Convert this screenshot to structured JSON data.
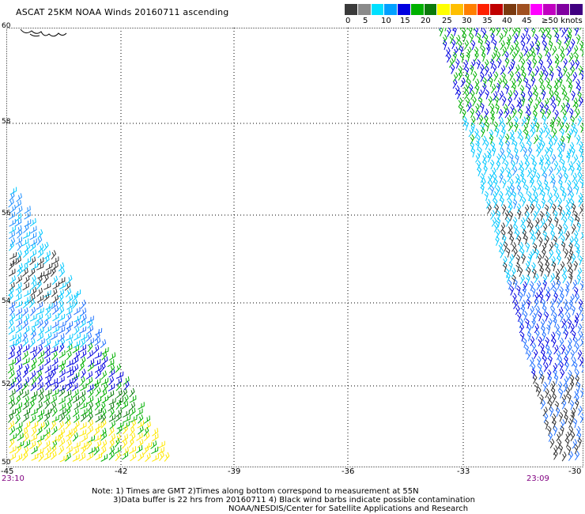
{
  "title": "ASCAT 25KM NOAA Winds 20160711 ascending",
  "legend": {
    "labels": [
      "0",
      "5",
      "10",
      "15",
      "20",
      "25",
      "30",
      "35",
      "40",
      "45",
      "≥50 knots"
    ],
    "colors": [
      "#3a3a3a",
      "#8a8a8a",
      "#00e0ff",
      "#00a0ff",
      "#0000e0",
      "#00b000",
      "#0a7a0a",
      "#ffff00",
      "#ffbf00",
      "#ff7f00",
      "#ff2000",
      "#c00000",
      "#7a3a10",
      "#a05020",
      "#ff00ff",
      "#c000c0",
      "#8000a0",
      "#400080"
    ]
  },
  "map": {
    "lat_labels": [
      "60",
      "58",
      "56",
      "54",
      "52",
      "50"
    ],
    "lon_labels": [
      "-45",
      "-42",
      "-39",
      "-36",
      "-33",
      "-30"
    ],
    "time_left": "23:10",
    "time_right": "23:09"
  },
  "notes": {
    "line1": "Note: 1) Times are GMT 2)Times along bottom correspond to measurement at 55N",
    "line2": "3)Data buffer is 22 hrs from 20160711 4) Black wind barbs indicate possible contamination",
    "line3": "NOAA/NESDIS/Center for Satellite Applications and Research"
  }
}
